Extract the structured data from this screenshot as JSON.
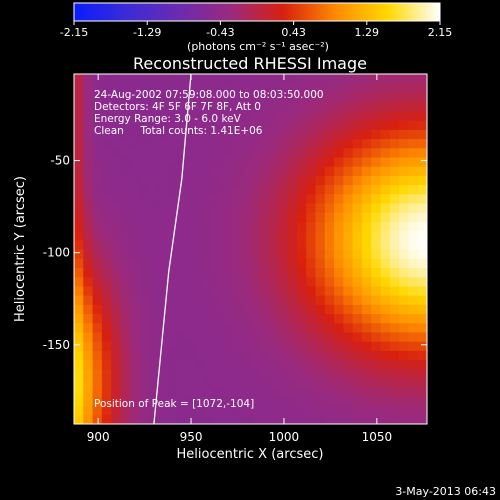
{
  "chart_data": {
    "type": "heatmap",
    "title": "Reconstructed RHESSI Image",
    "xlabel": "Heliocentric X (arcsec)",
    "ylabel": "Heliocentric Y (arcsec)",
    "xlim": [
      887,
      1077
    ],
    "ylim": [
      -193,
      -3
    ],
    "xticks": [
      900,
      950,
      1000,
      1050
    ],
    "yticks": [
      -50,
      -100,
      -150
    ],
    "colorbar": {
      "range": [
        -2.15,
        2.15
      ],
      "ticks": [
        "-2.15",
        "-1.29",
        "-0.43",
        "0.43",
        "1.29",
        "2.15"
      ],
      "label": "(photons cm⁻² s⁻¹ asec⁻²)",
      "colors": [
        "#0a1cff",
        "#3b2bd8",
        "#6a2bb0",
        "#9a2a7e",
        "#d8200f",
        "#ff8a00",
        "#ffd800",
        "#ffffff"
      ]
    },
    "annotations": [
      "24-Aug-2002 07:59:08.000 to 08:03:50.000",
      "Detectors: 4F 5F 6F 7F 8F, Att 0",
      "Energy Range: 3.0 - 6.0 keV",
      "Clean     Total counts: 1.41E+06"
    ],
    "peak_label": "Position of Peak = [1072,-104]",
    "peak": [
      1072,
      -104
    ],
    "sources": [
      {
        "x": 1077,
        "y": -93,
        "peak": 2.15,
        "description": "bright limb source"
      },
      {
        "x": 887,
        "y": -170,
        "peak": 1.3,
        "description": "lower-left source"
      }
    ],
    "limb_curve": [
      [
        950,
        -3
      ],
      [
        945,
        -60
      ],
      [
        938,
        -110
      ],
      [
        930,
        -193
      ]
    ]
  },
  "footer": {
    "date": "3-May-2013 06:43"
  }
}
